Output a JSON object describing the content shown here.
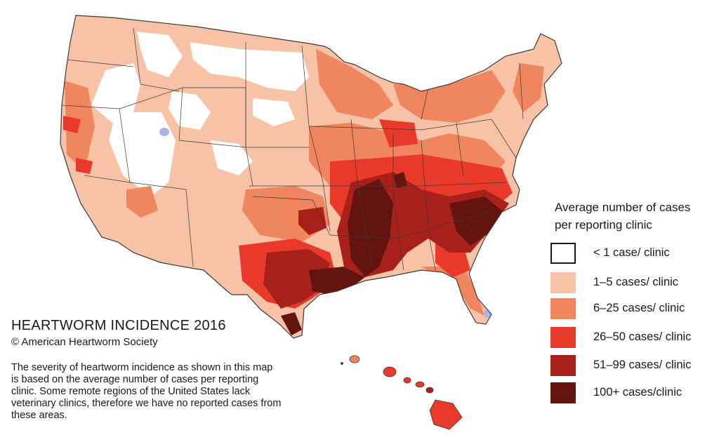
{
  "map": {
    "title": "HEARTWORM INCIDENCE 2016",
    "copyright": "© American Heartworm Society",
    "description": "The severity of heartworm incidence as shown in this map is based on the average number of cases per reporting clinic.  Some remote regions of the United States lack veterinary clinics, therefore we have no reported cases from these areas.",
    "colors": {
      "none": "#ffffff",
      "low": "#f7c2a6",
      "mid": "#ef865f",
      "high": "#e8392a",
      "vhigh": "#a8201a",
      "extreme": "#64140f",
      "no_data": "#a9b5e6",
      "border": "#3a3a3a"
    }
  },
  "legend": {
    "title_line1": "Average number of cases",
    "title_line2": "per reporting clinic",
    "items": [
      {
        "label": "< 1 case/ clinic",
        "color": "#ffffff"
      },
      {
        "label": "1–5 cases/ clinic",
        "color": "#f7c2a6"
      },
      {
        "label": "6–25  cases/ clinic",
        "color": "#ef865f"
      },
      {
        "label": "26–50  cases/ clinic",
        "color": "#e8392a"
      },
      {
        "label": "51–99 cases/ clinic",
        "color": "#a8201a"
      },
      {
        "label": "100+ cases/clinic",
        "color": "#64140f"
      }
    ]
  }
}
